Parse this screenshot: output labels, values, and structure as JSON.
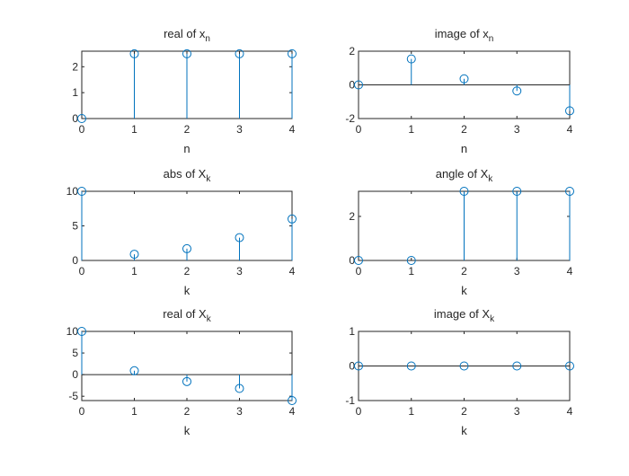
{
  "chart_data": [
    {
      "type": "stem",
      "title": "real of x",
      "title_sub": "n",
      "xlabel": "n",
      "x": [
        0,
        1,
        2,
        3,
        4
      ],
      "y": [
        0,
        2.5,
        2.5,
        2.5,
        2.5
      ],
      "xlim": [
        0,
        4
      ],
      "ylim": [
        0,
        2.6
      ],
      "xticks": [
        0,
        1,
        2,
        3,
        4
      ],
      "yticks": [
        0,
        1,
        2
      ],
      "color": "#0072BD",
      "grid": false
    },
    {
      "type": "stem",
      "title": "image of x",
      "title_sub": "n",
      "xlabel": "n",
      "x": [
        0,
        1,
        2,
        3,
        4
      ],
      "y": [
        0,
        1.54,
        0.36,
        -0.36,
        -1.54
      ],
      "xlim": [
        0,
        4
      ],
      "ylim": [
        -2,
        2
      ],
      "xticks": [
        0,
        1,
        2,
        3,
        4
      ],
      "yticks": [
        -2,
        0,
        2
      ],
      "color": "#0072BD",
      "grid": false
    },
    {
      "type": "stem",
      "title": "abs of X",
      "title_sub": "k",
      "xlabel": "k",
      "x": [
        0,
        1,
        2,
        3,
        4
      ],
      "y": [
        10,
        0.9,
        1.7,
        3.3,
        6
      ],
      "xlim": [
        0,
        4
      ],
      "ylim": [
        0,
        10
      ],
      "xticks": [
        0,
        1,
        2,
        3,
        4
      ],
      "yticks": [
        0,
        5,
        10
      ],
      "color": "#0072BD",
      "grid": false
    },
    {
      "type": "stem",
      "title": "angle of X",
      "title_sub": "k",
      "xlabel": "k",
      "x": [
        0,
        1,
        2,
        3,
        4
      ],
      "y": [
        0,
        0,
        3.14,
        3.14,
        3.14
      ],
      "xlim": [
        0,
        4
      ],
      "ylim": [
        0,
        3.14
      ],
      "xticks": [
        0,
        1,
        2,
        3,
        4
      ],
      "yticks": [
        0,
        2
      ],
      "color": "#0072BD",
      "grid": false
    },
    {
      "type": "stem",
      "title": "real of X",
      "title_sub": "k",
      "xlabel": "k",
      "x": [
        0,
        1,
        2,
        3,
        4
      ],
      "y": [
        10,
        0.9,
        -1.6,
        -3.2,
        -6
      ],
      "xlim": [
        0,
        4
      ],
      "ylim": [
        -6,
        10
      ],
      "xticks": [
        0,
        1,
        2,
        3,
        4
      ],
      "yticks": [
        -5,
        0,
        5,
        10
      ],
      "color": "#0072BD",
      "grid": false
    },
    {
      "type": "stem",
      "title": "image of X",
      "title_sub": "k",
      "xlabel": "k",
      "x": [
        0,
        1,
        2,
        3,
        4
      ],
      "y": [
        0,
        0,
        0,
        0,
        0
      ],
      "xlim": [
        0,
        4
      ],
      "ylim": [
        -1,
        1
      ],
      "xticks": [
        0,
        1,
        2,
        3,
        4
      ],
      "yticks": [
        -1,
        0,
        1
      ],
      "color": "#0072BD",
      "grid": false
    }
  ]
}
